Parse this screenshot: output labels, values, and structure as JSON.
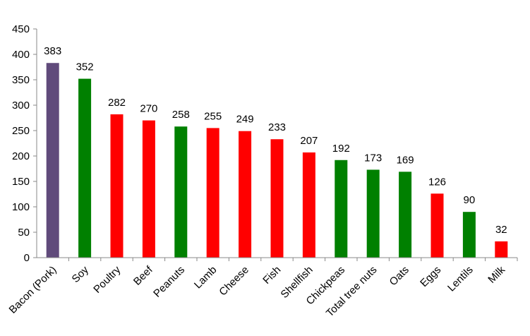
{
  "chart_data": {
    "type": "bar",
    "title": "",
    "xlabel": "",
    "ylabel": "",
    "ylim": [
      0,
      450
    ],
    "yticks": [
      0,
      50,
      100,
      150,
      200,
      250,
      300,
      350,
      400,
      450
    ],
    "ytick_labels": [
      "0",
      "50",
      "100",
      "150",
      "200",
      "250",
      "300",
      "350",
      "400",
      "450"
    ],
    "grid": false,
    "categories": [
      "Bacon (Pork)",
      "Soy",
      "Poultry",
      "Beef",
      "Peanuts",
      "Lamb",
      "Cheese",
      "Fish",
      "Shellfish",
      "Chickpeas",
      "Total tree nuts",
      "Oats",
      "Eggs",
      "Lentils",
      "Milk"
    ],
    "values": [
      383,
      352,
      282,
      270,
      258,
      255,
      249,
      233,
      207,
      192,
      173,
      169,
      126,
      90,
      32
    ],
    "data_labels": [
      "383",
      "352",
      "282",
      "270",
      "258",
      "255",
      "249",
      "233",
      "207",
      "192",
      "173",
      "169",
      "126",
      "90",
      "32"
    ],
    "bar_colors": [
      "#604a7b",
      "#008000",
      "#ff0000",
      "#ff0000",
      "#008000",
      "#ff0000",
      "#ff0000",
      "#ff0000",
      "#ff0000",
      "#008000",
      "#008000",
      "#008000",
      "#ff0000",
      "#008000",
      "#ff0000"
    ]
  }
}
